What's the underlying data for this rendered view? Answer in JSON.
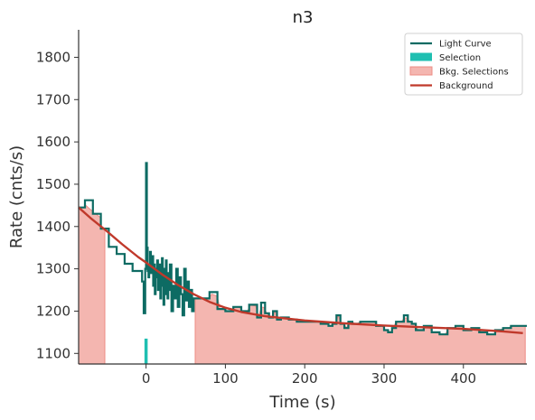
{
  "chart_data": {
    "type": "line",
    "title": "n3",
    "xlabel": "Time (s)",
    "ylabel": "Rate (cnts/s)",
    "xlim": [
      -85,
      480
    ],
    "ylim": [
      1075,
      1865
    ],
    "xticks": [
      0,
      100,
      200,
      300,
      400
    ],
    "yticks": [
      1100,
      1200,
      1300,
      1400,
      1500,
      1600,
      1700,
      1800
    ],
    "grid": false,
    "legend_position": "top-right",
    "legend": [
      "Light Curve",
      "Selection",
      "Bkg. Selections",
      "Background"
    ],
    "colors": {
      "light_curve": "#0d6b63",
      "selection": "#1fbfb1",
      "bkg_fill": "#f4b6b0",
      "bkg_edge": "#ee8c85",
      "background": "#c0392b",
      "axis": "#333333"
    },
    "series": [
      {
        "name": "Light Curve",
        "style": "step",
        "x": [
          -85,
          -77,
          -67,
          -57,
          -47,
          -37,
          -27,
          -17,
          -5,
          -3,
          -1,
          0,
          1,
          2,
          3,
          4,
          5,
          6,
          7,
          8,
          9,
          10,
          11,
          12,
          13,
          14,
          15,
          16,
          17,
          18,
          19,
          20,
          21,
          22,
          23,
          24,
          25,
          26,
          27,
          28,
          29,
          30,
          32,
          34,
          36,
          38,
          40,
          42,
          44,
          46,
          48,
          50,
          52,
          54,
          56,
          58,
          60,
          70,
          80,
          90,
          100,
          110,
          120,
          130,
          140,
          145,
          150,
          155,
          160,
          165,
          170,
          180,
          190,
          200,
          210,
          220,
          230,
          235,
          240,
          245,
          250,
          255,
          260,
          270,
          280,
          290,
          300,
          305,
          310,
          315,
          320,
          325,
          330,
          335,
          340,
          350,
          360,
          370,
          380,
          390,
          400,
          410,
          420,
          430,
          440,
          450,
          460,
          470,
          480
        ],
        "y": [
          1445,
          1462,
          1430,
          1395,
          1352,
          1335,
          1312,
          1295,
          1270,
          1195,
          1300,
          1550,
          1350,
          1295,
          1280,
          1310,
          1340,
          1290,
          1315,
          1330,
          1260,
          1310,
          1240,
          1300,
          1280,
          1320,
          1250,
          1290,
          1310,
          1230,
          1280,
          1325,
          1260,
          1215,
          1300,
          1240,
          1320,
          1260,
          1230,
          1290,
          1250,
          1310,
          1200,
          1260,
          1230,
          1300,
          1210,
          1280,
          1240,
          1190,
          1300,
          1225,
          1270,
          1210,
          1250,
          1200,
          1230,
          1230,
          1245,
          1205,
          1200,
          1210,
          1200,
          1215,
          1185,
          1220,
          1195,
          1185,
          1200,
          1180,
          1185,
          1180,
          1175,
          1175,
          1175,
          1170,
          1165,
          1170,
          1190,
          1170,
          1160,
          1175,
          1170,
          1175,
          1175,
          1165,
          1155,
          1150,
          1160,
          1175,
          1175,
          1190,
          1175,
          1170,
          1155,
          1165,
          1150,
          1145,
          1160,
          1165,
          1155,
          1160,
          1150,
          1145,
          1155,
          1160,
          1165,
          1165,
          1165
        ]
      },
      {
        "name": "Background",
        "style": "smooth",
        "x": [
          -85,
          -70,
          -50,
          -30,
          -10,
          0,
          20,
          40,
          60,
          80,
          100,
          120,
          150,
          200,
          250,
          300,
          350,
          400,
          450,
          475
        ],
        "y": [
          1445,
          1420,
          1390,
          1358,
          1328,
          1315,
          1287,
          1262,
          1240,
          1222,
          1208,
          1198,
          1188,
          1178,
          1171,
          1166,
          1162,
          1158,
          1152,
          1148
        ]
      }
    ],
    "selection": {
      "name": "Selection",
      "x_start": -2,
      "x_end": 2
    },
    "bkg_selections": [
      {
        "name": "Bkg. Selections",
        "x_start": -85,
        "x_end": -52
      },
      {
        "name": "Bkg. Selections",
        "x_start": 62,
        "x_end": 478
      }
    ],
    "xtick_labels": [
      "0",
      "100",
      "200",
      "300",
      "400"
    ],
    "ytick_labels": [
      "1100",
      "1200",
      "1300",
      "1400",
      "1500",
      "1600",
      "1700",
      "1800"
    ]
  }
}
